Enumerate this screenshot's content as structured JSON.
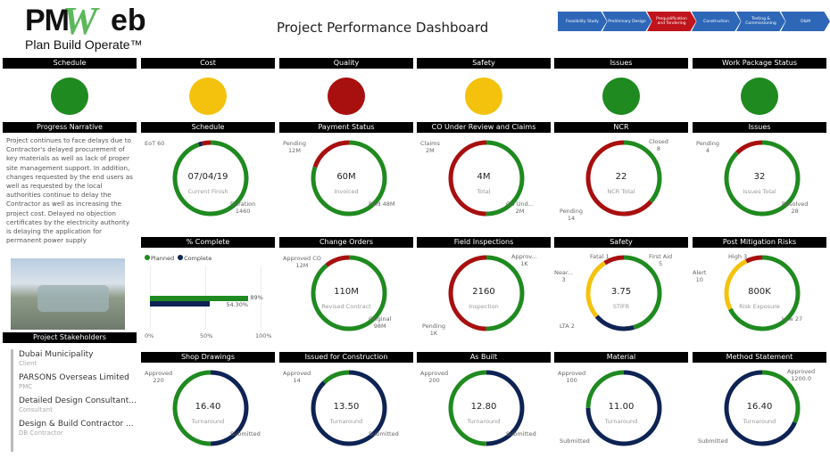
{
  "logo": {
    "brand": "PMWeb",
    "tagline": "Plan Build Operate™"
  },
  "title": "Project Performance Dashboard",
  "stages": [
    {
      "label": "Feasibility Study",
      "active": false
    },
    {
      "label": "Preliminary Design",
      "active": false
    },
    {
      "label": "Prequalification and Tendering",
      "active": true
    },
    {
      "label": "Construction",
      "active": false
    },
    {
      "label": "Testing & Commissioning",
      "active": false
    },
    {
      "label": "O&M",
      "active": false
    }
  ],
  "colors": {
    "green": "#1f8a1f",
    "red": "#a80f0f",
    "yellow": "#f4c20d",
    "navy": "#0e2354",
    "stage_blue": "#2e67b8",
    "stage_active": "#c0141c"
  },
  "status_lights": [
    {
      "label": "Schedule",
      "status": "green"
    },
    {
      "label": "Cost",
      "status": "yellow"
    },
    {
      "label": "Quality",
      "status": "red"
    },
    {
      "label": "Safety",
      "status": "yellow"
    },
    {
      "label": "Issues",
      "status": "green"
    },
    {
      "label": "Work Package Status",
      "status": "green"
    }
  ],
  "narrative": {
    "title": "Progress Narrative",
    "text": "Project continues to face delays due to Contractor's delayed procurement of key materials as well as lack of proper site management support. In addition, changes requested by the end users as well as requested by the local authorities continue to delay the Contractor as well as increasing the project cost. Delayed no objection certificates by the electricity authority is delaying the application for permanent power supply"
  },
  "percent_complete": {
    "title": "% Complete",
    "legend": [
      "Planned",
      "Complete"
    ],
    "planned": 89,
    "complete": 54.3,
    "planned_label": "89%",
    "complete_label": "54.30%",
    "ticks": [
      "0%",
      "50%",
      "100%"
    ]
  },
  "stakeholders": {
    "title": "Project Stakeholders",
    "items": [
      {
        "name": "Dubai Municipality",
        "role": "Client"
      },
      {
        "name": "PARSONS Overseas Limited",
        "role": "PMC"
      },
      {
        "name": "Detailed Design Consultant...",
        "role": "Consultant"
      },
      {
        "name": "Design & Build Contractor ...",
        "role": "DB Contractor"
      }
    ]
  },
  "donuts": [
    {
      "title": "Schedule",
      "value": "07/04/19",
      "label": "Current Finish",
      "row": 2,
      "col": 1,
      "segments": [
        {
          "v": 1460,
          "c": "green"
        },
        {
          "v": 25,
          "c": "navy"
        },
        {
          "v": 60,
          "c": "red"
        }
      ],
      "labels": [
        {
          "text": "EoT 60",
          "pos": "tl"
        },
        {
          "text": "Duration\n1460",
          "pos": "br"
        }
      ]
    },
    {
      "title": "Payment Status",
      "value": "60M",
      "label": "Invoiced",
      "row": 2,
      "col": 2,
      "segments": [
        {
          "v": 48,
          "c": "green"
        },
        {
          "v": 12,
          "c": "red"
        }
      ],
      "labels": [
        {
          "text": "Pending\n12M",
          "pos": "tl"
        },
        {
          "text": "Paid 48M",
          "pos": "br"
        }
      ]
    },
    {
      "title": "CO Under Review and Claims",
      "value": "4M",
      "label": "Total",
      "row": 2,
      "col": 3,
      "segments": [
        {
          "v": 2,
          "c": "green"
        },
        {
          "v": 2,
          "c": "red"
        }
      ],
      "labels": [
        {
          "text": "Claims\n2M",
          "pos": "tl"
        },
        {
          "text": "CO Und...\n2M",
          "pos": "br"
        }
      ]
    },
    {
      "title": "NCR",
      "value": "22",
      "label": "NCR Total",
      "row": 2,
      "col": 4,
      "segments": [
        {
          "v": 8,
          "c": "green"
        },
        {
          "v": 14,
          "c": "red"
        }
      ],
      "labels": [
        {
          "text": "Closed\n8",
          "pos": "tr"
        },
        {
          "text": "Pending\n14",
          "pos": "bl"
        }
      ]
    },
    {
      "title": "Issues",
      "value": "32",
      "label": "Issues Total",
      "row": 2,
      "col": 5,
      "segments": [
        {
          "v": 28,
          "c": "green"
        },
        {
          "v": 4,
          "c": "red"
        }
      ],
      "labels": [
        {
          "text": "Pending\n4",
          "pos": "tl"
        },
        {
          "text": "Resolved\n28",
          "pos": "br"
        }
      ]
    },
    {
      "title": "Change Orders",
      "value": "110M",
      "label": "Revised Contract",
      "row": 3,
      "col": 2,
      "segments": [
        {
          "v": 98,
          "c": "green"
        },
        {
          "v": 12,
          "c": "red"
        }
      ],
      "labels": [
        {
          "text": "Approved CO\n12M",
          "pos": "tl"
        },
        {
          "text": "Original\n98M",
          "pos": "br"
        }
      ]
    },
    {
      "title": "Field Inspections",
      "value": "2160",
      "label": "Inspection",
      "row": 3,
      "col": 3,
      "segments": [
        {
          "v": 1,
          "c": "green"
        },
        {
          "v": 1,
          "c": "red"
        }
      ],
      "labels": [
        {
          "text": "Approv...\n1K",
          "pos": "tr"
        },
        {
          "text": "Pending\n1K",
          "pos": "bl"
        }
      ]
    },
    {
      "title": "Safety",
      "value": "3.75",
      "label": "STIFR",
      "row": 3,
      "col": 4,
      "segments": [
        {
          "v": 5,
          "c": "green"
        },
        {
          "v": 2,
          "c": "navy"
        },
        {
          "v": 3,
          "c": "yellow"
        },
        {
          "v": 1,
          "c": "red"
        }
      ],
      "labels": [
        {
          "text": "Fatal 1",
          "pos": "tt"
        },
        {
          "text": "First Aid\n5",
          "pos": "tr"
        },
        {
          "text": "Near...\n3",
          "pos": "l"
        },
        {
          "text": "LTA 2",
          "pos": "bl"
        }
      ]
    },
    {
      "title": "Post Mitigation Risks",
      "value": "800K",
      "label": "Risk Exposure",
      "row": 3,
      "col": 5,
      "segments": [
        {
          "v": 27,
          "c": "green"
        },
        {
          "v": 10,
          "c": "yellow"
        },
        {
          "v": 3,
          "c": "red"
        }
      ],
      "labels": [
        {
          "text": "High 3",
          "pos": "tt"
        },
        {
          "text": "Alert\n10",
          "pos": "l"
        },
        {
          "text": "Low 27",
          "pos": "br"
        }
      ]
    },
    {
      "title": "Shop Drawings",
      "value": "16.40",
      "label": "Turnaround",
      "row": 4,
      "col": 1,
      "segments": [
        {
          "v": 220,
          "c": "navy"
        },
        {
          "v": 220,
          "c": "green"
        }
      ],
      "labels": [
        {
          "text": "Approved\n220",
          "pos": "tl"
        },
        {
          "text": "Submitted",
          "pos": "br"
        }
      ]
    },
    {
      "title": "Issued for Construction",
      "value": "13.50",
      "label": "Turnaround",
      "row": 4,
      "col": 2,
      "segments": [
        {
          "v": 100,
          "c": "navy"
        },
        {
          "v": 14,
          "c": "green"
        }
      ],
      "labels": [
        {
          "text": "Approved\n14",
          "pos": "tl"
        },
        {
          "text": "Submitted",
          "pos": "br"
        }
      ]
    },
    {
      "title": "As Built",
      "value": "12.80",
      "label": "Turnaround",
      "row": 4,
      "col": 3,
      "segments": [
        {
          "v": 200,
          "c": "navy"
        },
        {
          "v": 200,
          "c": "green"
        }
      ],
      "labels": [
        {
          "text": "Approved\n200",
          "pos": "tl"
        },
        {
          "text": "Submitted",
          "pos": "br"
        }
      ]
    },
    {
      "title": "Material",
      "value": "11.00",
      "label": "Turnaround",
      "row": 4,
      "col": 4,
      "segments": [
        {
          "v": 300,
          "c": "navy"
        },
        {
          "v": 100,
          "c": "green"
        }
      ],
      "labels": [
        {
          "text": "Approved\n100",
          "pos": "tl"
        },
        {
          "text": "Submitted",
          "pos": "bl"
        }
      ]
    },
    {
      "title": "Method Statement",
      "value": "16.40",
      "label": "Turnaround",
      "row": 4,
      "col": 5,
      "segments": [
        {
          "v": 1200,
          "c": "green"
        },
        {
          "v": 2600,
          "c": "navy"
        }
      ],
      "labels": [
        {
          "text": "Approved\n1200.0",
          "pos": "tr"
        },
        {
          "text": "Submitted",
          "pos": "bl"
        }
      ]
    }
  ]
}
